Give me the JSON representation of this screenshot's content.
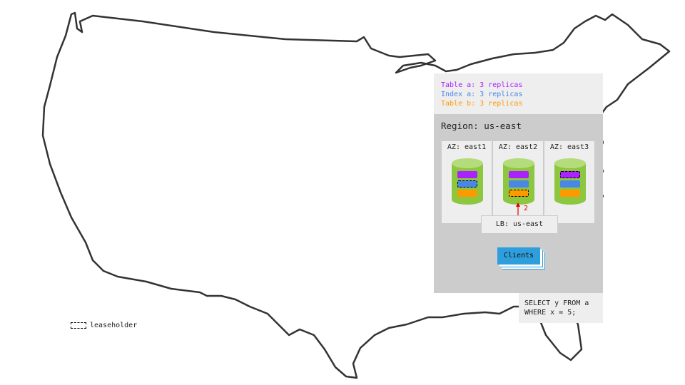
{
  "legend": {
    "items": [
      {
        "label": "Table a: 3 replicas",
        "color": "#aa22ff"
      },
      {
        "label": "Index a: 3 replicas",
        "color": "#4a86e8"
      },
      {
        "label": "Table b: 3 replicas",
        "color": "#ff9900"
      }
    ]
  },
  "region": {
    "title": "Region: us-east",
    "zones": [
      {
        "label": "AZ: east1",
        "leaseholder": "Index a"
      },
      {
        "label": "AZ: east2",
        "leaseholder": "Table b"
      },
      {
        "label": "AZ: east3",
        "leaseholder": "Table a"
      }
    ],
    "arrow_label": "2",
    "lb_label": "LB: us-east",
    "clients_label": "Clients"
  },
  "query": "SELECT y FROM a\nWHERE x = 5;",
  "key": {
    "leaseholder_label": "leaseholder"
  },
  "colors": {
    "cylinder": "#8dc63f",
    "cylinder_top": "#b5dc7a",
    "clients": "#2e9fdc",
    "arrow": "#e00000"
  }
}
